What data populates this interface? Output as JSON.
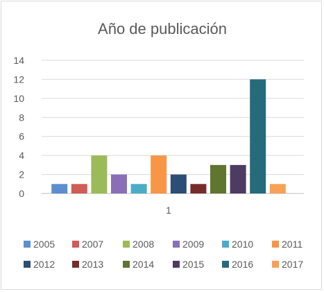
{
  "chart_data": {
    "type": "bar",
    "title": "Año de publicación",
    "categories": [
      "1"
    ],
    "ylim": [
      0,
      14
    ],
    "yticks": [
      0,
      2,
      4,
      6,
      8,
      10,
      12,
      14
    ],
    "grid": true,
    "legend_position": "bottom",
    "series": [
      {
        "name": "2005",
        "values": [
          1
        ],
        "color": "#5b8fd0"
      },
      {
        "name": "2007",
        "values": [
          1
        ],
        "color": "#d05c57"
      },
      {
        "name": "2008",
        "values": [
          4
        ],
        "color": "#9bbb59"
      },
      {
        "name": "2009",
        "values": [
          2
        ],
        "color": "#8a6fb7"
      },
      {
        "name": "2010",
        "values": [
          1
        ],
        "color": "#4bacc6"
      },
      {
        "name": "2011",
        "values": [
          4
        ],
        "color": "#f79646"
      },
      {
        "name": "2012",
        "values": [
          2
        ],
        "color": "#2c4d75"
      },
      {
        "name": "2013",
        "values": [
          1
        ],
        "color": "#772c2a"
      },
      {
        "name": "2014",
        "values": [
          3
        ],
        "color": "#5f7530"
      },
      {
        "name": "2015",
        "values": [
          3
        ],
        "color": "#4d3b62"
      },
      {
        "name": "2016",
        "values": [
          12
        ],
        "color": "#276a7c"
      },
      {
        "name": "2017",
        "values": [
          1
        ],
        "color": "#f9a054"
      }
    ]
  }
}
